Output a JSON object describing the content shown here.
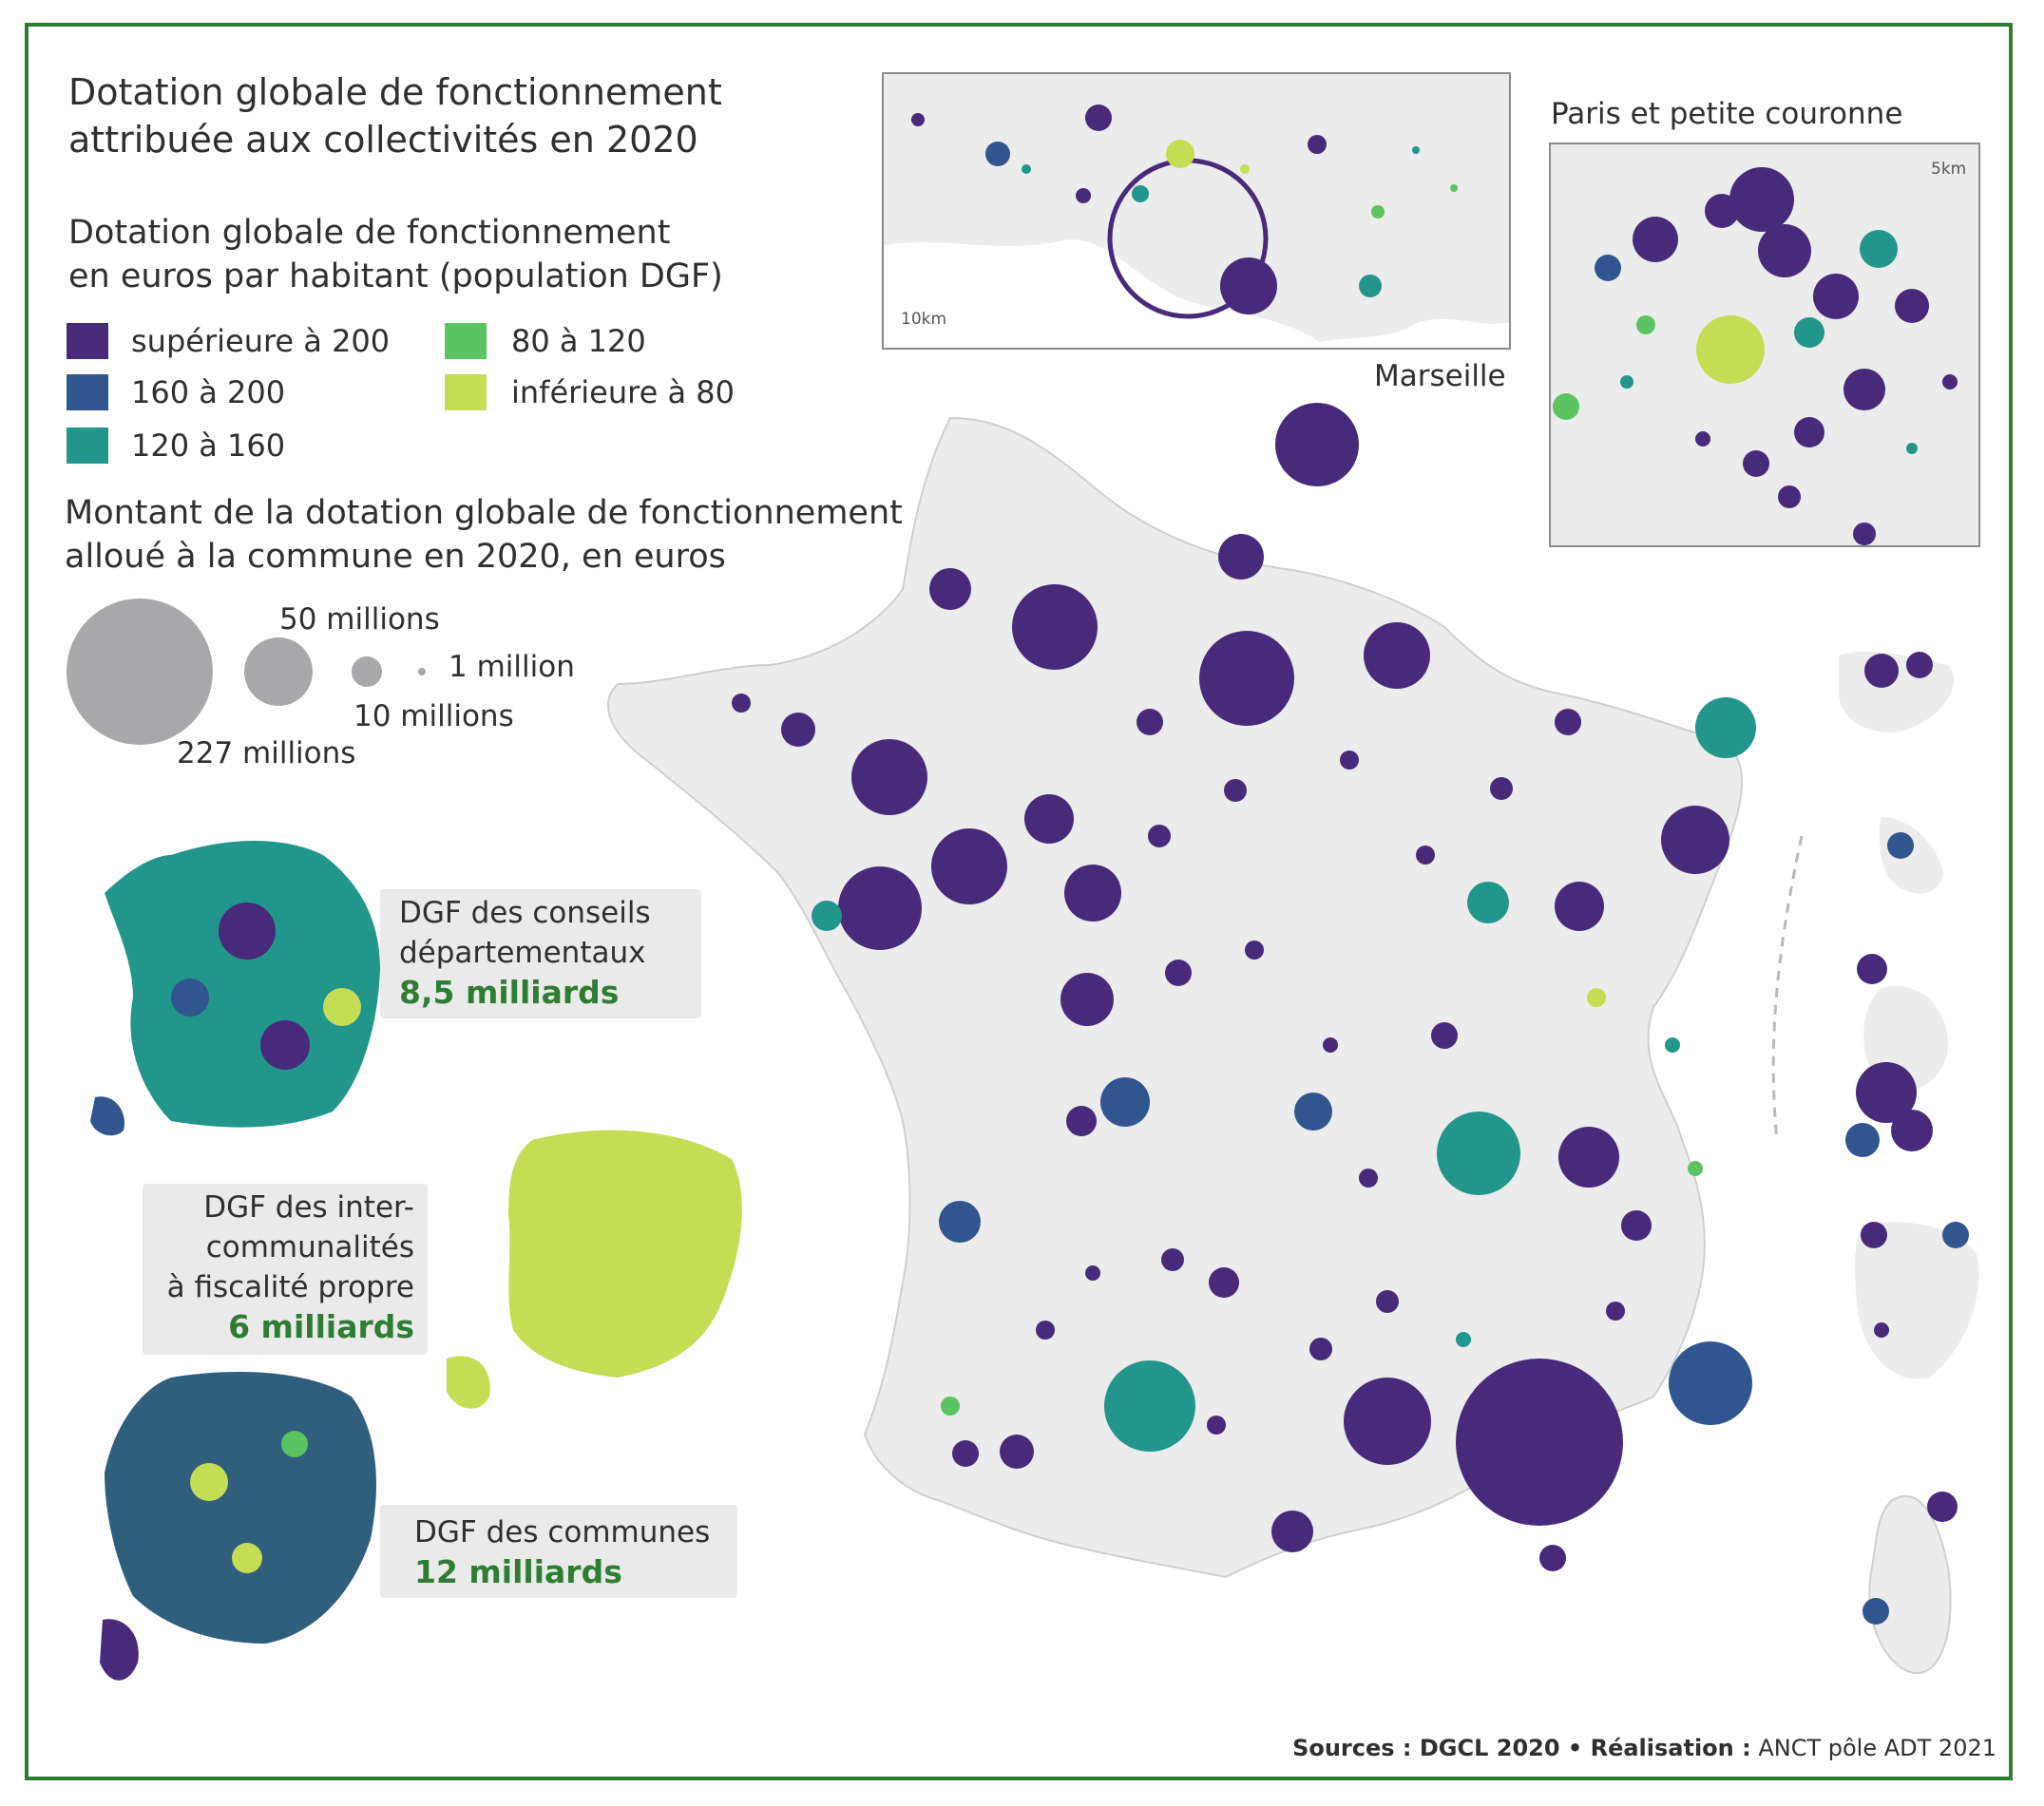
{
  "title": [
    "Dotation globale de fonctionnement",
    "attribuée aux collectivités en 2020"
  ],
  "legend_color": {
    "title": [
      "Dotation globale de fonctionnement",
      "en euros par habitant (population DGF)"
    ],
    "classes": [
      {
        "label": "supérieure à 200",
        "color": "#472a7a"
      },
      {
        "label": "160 à 200",
        "color": "#31558f"
      },
      {
        "label": "120 à 160",
        "color": "#23968b"
      },
      {
        "label": "80 à 120",
        "color": "#5cc362"
      },
      {
        "label": "inférieure à 80",
        "color": "#c5dd55"
      }
    ]
  },
  "legend_size": {
    "title": [
      "Montant de la dotation globale de fonctionnement",
      "alloué à la commune en 2020, en euros"
    ],
    "labels": [
      "227 millions",
      "50 millions",
      "10 millions",
      "1 million"
    ],
    "color": "#a8a8aa"
  },
  "insets": {
    "marseille": {
      "label": "Marseille",
      "scale": "10km"
    },
    "paris": {
      "label": "Paris et petite couronne",
      "scale": "5km"
    }
  },
  "panels": [
    {
      "lines": [
        "DGF des conseils",
        "départementaux"
      ],
      "value": "8,5 milliards"
    },
    {
      "lines": [
        "DGF des inter-",
        "communalités",
        "à fiscalité propre"
      ],
      "value": "6 milliards"
    },
    {
      "lines": [
        "DGF des communes"
      ],
      "value": "12 milliards"
    }
  ],
  "sources": {
    "prefix": "Sources : DGCL 2020 • Réalisation :",
    "credit": " ANCT pôle ADT 2021"
  },
  "colors": {
    "frame": "#2e7d32",
    "land": "#ececec",
    "highlight": "#2e7d32"
  }
}
